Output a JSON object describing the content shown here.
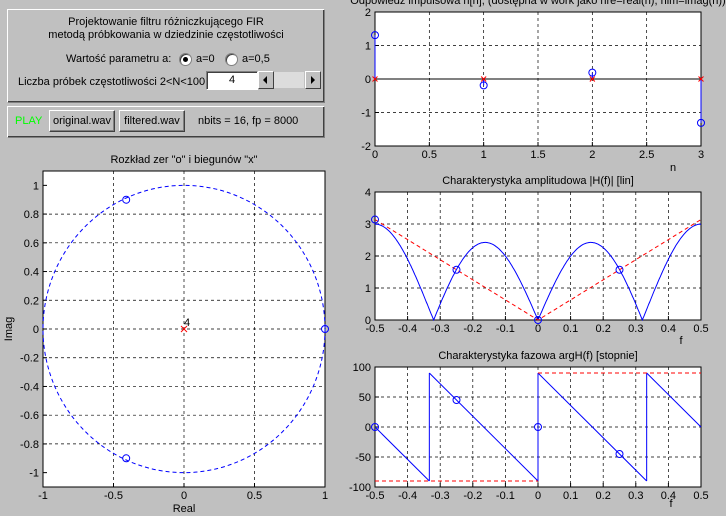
{
  "controls": {
    "title_line1": "Projektowanie filtru różniczkującego FIR",
    "title_line2": "metodą próbkowania w dziedzinie częstotliwości",
    "param_label": "Wartość parametru a:",
    "radio_a0": "a=0",
    "radio_a05": "a=0,5",
    "selected_radio": "a=0",
    "n_label": "Liczba próbek częstotliwości  2<N<100",
    "n_value": "4"
  },
  "play": {
    "label": "PLAY",
    "original_button": "original.wav",
    "filtered_button": "filtered.wav",
    "info": "nbits = 16,   fp = 8000",
    "label_color": "#00ff00"
  },
  "colors": {
    "line": "#0000ff",
    "marker": "#ff0000",
    "dashed_red": "#ff0000"
  },
  "chart_data": [
    {
      "id": "pz",
      "type": "scatter",
      "title": "Rozkład zer \"o\" i biegunów \"x\"",
      "xlabel": "Real",
      "ylabel": "Imag",
      "xlim": [
        -1,
        1
      ],
      "ylim": [
        -1.1,
        1.1
      ],
      "xticks": [
        "-1",
        "-0.5",
        "0",
        "0.5",
        "1"
      ],
      "yticks": [
        "-1",
        "-0.8",
        "-0.6",
        "-0.4",
        "-0.2",
        "0",
        "0.2",
        "0.4",
        "0.6",
        "0.8",
        "1"
      ],
      "zeros": [
        {
          "x": -0.41,
          "y": 0.9
        },
        {
          "x": -0.41,
          "y": -0.9
        },
        {
          "x": 1.0,
          "y": 0.0
        }
      ],
      "poles": [
        {
          "x": 0,
          "y": 0
        }
      ],
      "pole_label": "4",
      "grid": true
    },
    {
      "id": "imp",
      "type": "stem",
      "title": "Odpowiedź impulsowa h[n], (dostępna w work jako hre=real(h), him=imag(h))",
      "xlabel": "n",
      "xlim": [
        0,
        3
      ],
      "ylim": [
        -2,
        2
      ],
      "xticks": [
        "0",
        "0.5",
        "1",
        "1.5",
        "2",
        "2.5",
        "3"
      ],
      "yticks": [
        "-2",
        "-1",
        "0",
        "1",
        "2"
      ],
      "real": [
        1.31,
        -0.19,
        0.19,
        -1.31
      ],
      "imag": [
        0,
        0,
        0,
        0
      ],
      "grid": true
    },
    {
      "id": "amp",
      "type": "line",
      "title": "Charakterystyka amplitudowa |H(f)| [lin]",
      "xlabel": "f",
      "xlim": [
        -0.5,
        0.5
      ],
      "ylim": [
        0,
        4
      ],
      "xticks": [
        "-0.5",
        "-0.4",
        "-0.3",
        "-0.2",
        "-0.1",
        "0",
        "0.1",
        "0.2",
        "0.3",
        "0.4",
        "0.5"
      ],
      "yticks": [
        "0",
        "1",
        "2",
        "3",
        "4"
      ],
      "samples": [
        {
          "f": -0.5,
          "v": 3.14
        },
        {
          "f": -0.25,
          "v": 1.57
        },
        {
          "f": 0,
          "v": 0
        },
        {
          "f": 0.25,
          "v": 1.57
        }
      ],
      "grid": true
    },
    {
      "id": "phase",
      "type": "line",
      "title": "Charakterystyka fazowa argH(f) [stopnie]",
      "xlabel": "f",
      "xlim": [
        -0.5,
        0.5
      ],
      "ylim": [
        -100,
        100
      ],
      "xticks": [
        "-0.5",
        "-0.4",
        "-0.3",
        "-0.2",
        "-0.1",
        "0",
        "0.1",
        "0.2",
        "0.3",
        "0.4",
        "0.5"
      ],
      "yticks": [
        "-100",
        "-50",
        "0",
        "50",
        "100"
      ],
      "samples": [
        {
          "f": -0.5,
          "v": 0
        },
        {
          "f": -0.25,
          "v": 45
        },
        {
          "f": 0,
          "v": 0
        },
        {
          "f": 0.25,
          "v": -45
        }
      ],
      "grid": true
    }
  ]
}
